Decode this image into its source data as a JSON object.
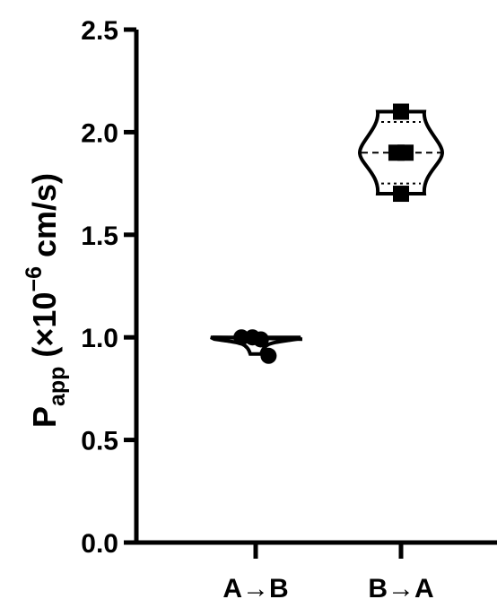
{
  "chart_data": {
    "type": "violin",
    "ylabel": {
      "main": "P",
      "subscript": "app",
      "unit_prefix": " (×10",
      "exponent": "−6",
      "unit_suffix": " cm/s)"
    },
    "ylim": [
      0,
      2.5
    ],
    "yticks": [
      "0.0",
      "0.5",
      "1.0",
      "1.5",
      "2.0",
      "2.5"
    ],
    "categories": [
      "A→B",
      "B→A"
    ],
    "series": [
      {
        "category": "A→B",
        "marker": "circle",
        "points": [
          {
            "x": -0.22,
            "y": 1.0
          },
          {
            "x": -0.05,
            "y": 1.0
          },
          {
            "x": 0.08,
            "y": 0.99
          },
          {
            "x": 0.2,
            "y": 0.91
          }
        ],
        "median": 0.98,
        "quartiles": [
          0.94,
          1.0
        ],
        "range": [
          0.91,
          1.0
        ]
      },
      {
        "category": "B→A",
        "marker": "square",
        "points": [
          {
            "x": 0.0,
            "y": 2.1
          },
          {
            "x": -0.07,
            "y": 1.9
          },
          {
            "x": 0.07,
            "y": 1.9
          },
          {
            "x": 0.0,
            "y": 1.7
          }
        ],
        "median": 1.9,
        "quartiles": [
          1.75,
          2.05
        ],
        "range": [
          1.7,
          2.1
        ]
      }
    ]
  }
}
